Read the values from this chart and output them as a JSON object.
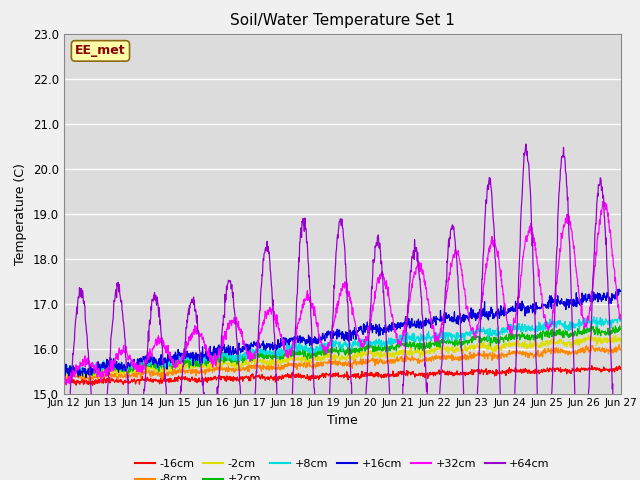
{
  "title": "Soil/Water Temperature Set 1",
  "xlabel": "Time",
  "ylabel": "Temperature (C)",
  "ylim": [
    15.0,
    23.0
  ],
  "yticks": [
    15.0,
    16.0,
    17.0,
    18.0,
    19.0,
    20.0,
    21.0,
    22.0,
    23.0
  ],
  "xtick_labels": [
    "Jun 12",
    "Jun 13",
    "Jun 14",
    "Jun 15",
    "Jun 16",
    "Jun 17",
    "Jun 18",
    "Jun 19",
    "Jun 20",
    "Jun 21",
    "Jun 22",
    "Jun 23",
    "Jun 24",
    "Jun 25",
    "Jun 26",
    "Jun 27"
  ],
  "n_days": 15,
  "points_per_day": 96,
  "series": [
    {
      "label": "-16cm",
      "color": "#ff0000",
      "base": 15.25,
      "noise": 0.06,
      "trend": 0.3
    },
    {
      "label": "-8cm",
      "color": "#ff8800",
      "base": 15.35,
      "noise": 0.07,
      "trend": 0.65
    },
    {
      "label": "-2cm",
      "color": "#dddd00",
      "base": 15.42,
      "noise": 0.08,
      "trend": 0.8
    },
    {
      "label": "+2cm",
      "color": "#00bb00",
      "base": 15.48,
      "noise": 0.09,
      "trend": 0.95
    },
    {
      "label": "+8cm",
      "color": "#00dddd",
      "base": 15.5,
      "noise": 0.1,
      "trend": 1.15
    },
    {
      "label": "+16cm",
      "color": "#0000dd",
      "base": 15.45,
      "noise": 0.12,
      "trend": 1.75
    }
  ],
  "series_32": {
    "label": "+32cm",
    "color": "#ff00ff",
    "base": 15.45,
    "trend": 2.5
  },
  "series_64": {
    "label": "+64cm",
    "color": "#9900cc",
    "base": 15.3,
    "trend": 1.2
  },
  "watermark_text": "EE_met",
  "plot_bg_color": "#dcdcdc",
  "fig_bg_color": "#f0f0f0",
  "linewidth": 0.9
}
